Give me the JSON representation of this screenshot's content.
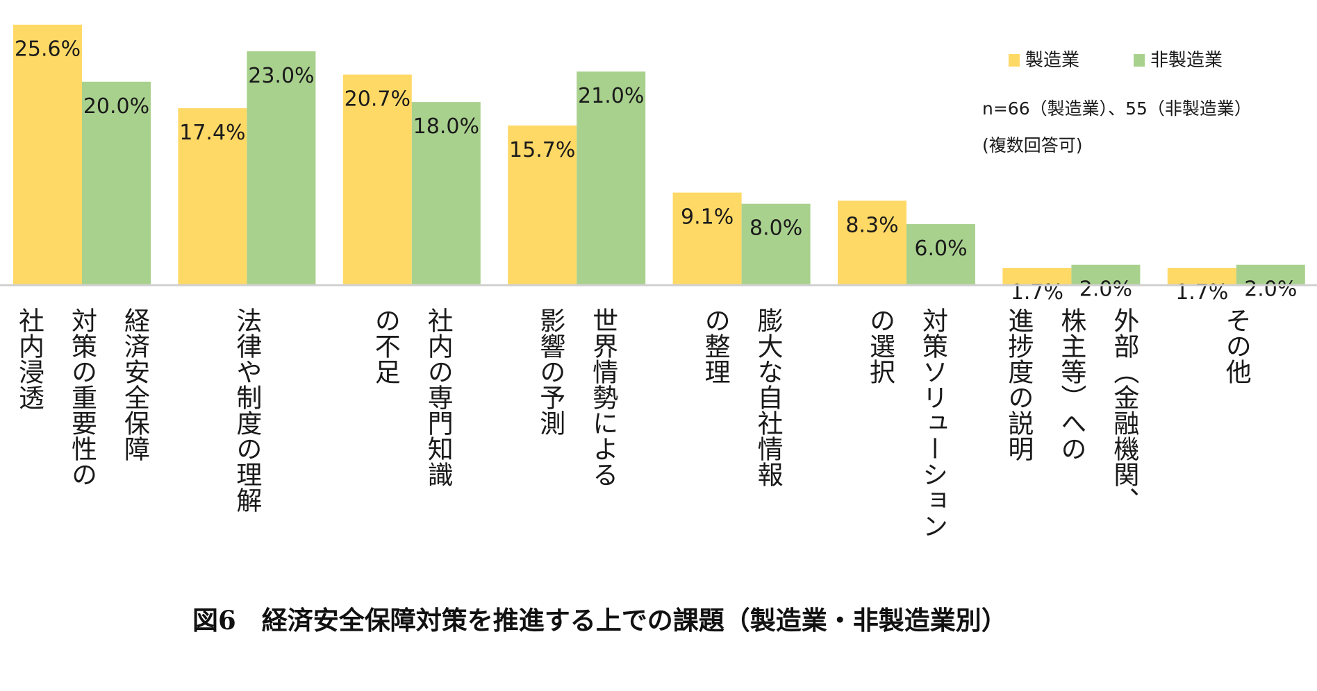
{
  "chart_data": {
    "type": "bar",
    "title": "図6　経済安全保障対策を推進する上での課題（製造業・非製造業別）",
    "categories": [
      [
        "経済安全保障",
        "対策の重要性の",
        "社内浸透"
      ],
      [
        "法律や制度の理解"
      ],
      [
        "社内の専門知識",
        "の不足"
      ],
      [
        "世界情勢による",
        "影響の予測"
      ],
      [
        "膨大な自社情報",
        "の整理"
      ],
      [
        "対策ソリューション",
        "の選択"
      ],
      [
        "外部（金融機関、",
        "株主等）への",
        "進捗度の説明"
      ],
      [
        "その他"
      ]
    ],
    "series": [
      {
        "name": "製造業",
        "color": "#ffd966",
        "values": [
          25.6,
          17.4,
          20.7,
          15.7,
          9.1,
          8.3,
          1.7,
          1.7
        ],
        "labels": [
          "25.6%",
          "17.4%",
          "20.7%",
          "15.7%",
          "9.1%",
          "8.3%",
          "1.7%",
          "1.7%"
        ]
      },
      {
        "name": "非製造業",
        "color": "#a9d18e",
        "values": [
          20.0,
          23.0,
          18.0,
          21.0,
          8.0,
          6.0,
          2.0,
          2.0
        ],
        "labels": [
          "20.0%",
          "23.0%",
          "18.0%",
          "21.0%",
          "8.0%",
          "6.0%",
          "2.0%",
          "2.0%"
        ]
      }
    ],
    "ylim": [
      0,
      25.6
    ],
    "legend_position": "top-right",
    "notes": [
      "n=66（製造業）、55（非製造業）",
      "(複数回答可)"
    ],
    "grid": false
  }
}
